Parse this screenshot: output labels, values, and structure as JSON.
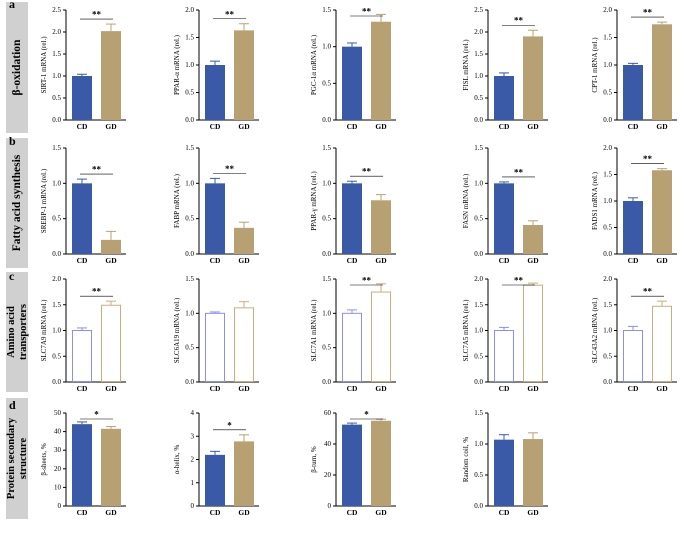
{
  "colors": {
    "cd": "#3a5aa8",
    "gd": "#b7a173",
    "gd_outline": "#c9ad7f",
    "cd_outline": "#8c8ff2",
    "axis": "#000000",
    "band": "#d0d0d0"
  },
  "panels": [
    {
      "letter": "a",
      "label": "β-oxidation"
    },
    {
      "letter": "b",
      "label": "Fatty acid synthesis"
    },
    {
      "letter": "c",
      "label": "Amino acid transporters"
    },
    {
      "letter": "d",
      "label": "Protein secondary structure"
    }
  ],
  "chart_data": [
    {
      "type": "bar",
      "row": 0,
      "col": 0,
      "title": "",
      "ylabel": "SIRT-1 mRNA (rel.)",
      "categories": [
        "CD",
        "GD"
      ],
      "values": [
        1.0,
        2.02
      ],
      "errors": [
        0.04,
        0.16
      ],
      "ylim": [
        0,
        2.5
      ],
      "yticks": [
        "0.0",
        "0.5",
        "1.0",
        "1.5",
        "2.0",
        "2.5"
      ],
      "significance": "**",
      "style": "filled"
    },
    {
      "type": "bar",
      "row": 0,
      "col": 1,
      "title": "",
      "ylabel": "PPAR-α mRNA (rel.)",
      "categories": [
        "CD",
        "GD"
      ],
      "values": [
        1.0,
        1.63
      ],
      "errors": [
        0.07,
        0.12
      ],
      "ylim": [
        0,
        2.0
      ],
      "yticks": [
        "0.0",
        "0.5",
        "1.0",
        "1.5",
        "2.0"
      ],
      "significance": "**",
      "style": "filled"
    },
    {
      "type": "bar",
      "row": 0,
      "col": 2,
      "title": "",
      "ylabel": "PGC-1α mRNA (rel.)",
      "categories": [
        "CD",
        "GD"
      ],
      "values": [
        1.0,
        1.34
      ],
      "errors": [
        0.05,
        0.1
      ],
      "ylim": [
        0,
        1.5
      ],
      "yticks": [
        "0.0",
        "0.5",
        "1.0",
        "1.5"
      ],
      "significance": "**",
      "style": "filled"
    },
    {
      "type": "bar",
      "row": 0,
      "col": 3,
      "title": "",
      "ylabel": "FISL mRNA (rel.)",
      "categories": [
        "CD",
        "GD"
      ],
      "values": [
        1.0,
        1.9
      ],
      "errors": [
        0.07,
        0.14
      ],
      "ylim": [
        0,
        2.5
      ],
      "yticks": [
        "0.0",
        "0.5",
        "1.0",
        "1.5",
        "2.0",
        "2.5"
      ],
      "significance": "**",
      "style": "filled"
    },
    {
      "type": "bar",
      "row": 0,
      "col": 4,
      "title": "",
      "ylabel": "CPT-1 mRNA (rel.)",
      "categories": [
        "CD",
        "GD"
      ],
      "values": [
        1.0,
        1.74
      ],
      "errors": [
        0.03,
        0.04
      ],
      "ylim": [
        0,
        2.0
      ],
      "yticks": [
        "0.0",
        "0.5",
        "1.0",
        "1.5",
        "2.0"
      ],
      "significance": "**",
      "style": "filled"
    },
    {
      "type": "bar",
      "row": 1,
      "col": 0,
      "title": "",
      "ylabel": "SREBP-1 mRNA (rel.)",
      "categories": [
        "CD",
        "GD"
      ],
      "values": [
        1.0,
        0.2
      ],
      "errors": [
        0.06,
        0.12
      ],
      "ylim": [
        0,
        1.5
      ],
      "yticks": [
        "0.0",
        "0.5",
        "1.0",
        "1.5"
      ],
      "significance": "**",
      "style": "filled"
    },
    {
      "type": "bar",
      "row": 1,
      "col": 1,
      "title": "",
      "ylabel": "FABP mRNA (rel.)",
      "categories": [
        "CD",
        "GD"
      ],
      "values": [
        1.0,
        0.37
      ],
      "errors": [
        0.07,
        0.08
      ],
      "ylim": [
        0,
        1.5
      ],
      "yticks": [
        "0.0",
        "0.5",
        "1.0",
        "1.5"
      ],
      "significance": "**",
      "style": "filled"
    },
    {
      "type": "bar",
      "row": 1,
      "col": 2,
      "title": "",
      "ylabel": "PPAR-γ mRNA (rel.)",
      "categories": [
        "CD",
        "GD"
      ],
      "values": [
        1.0,
        0.76
      ],
      "errors": [
        0.03,
        0.08
      ],
      "ylim": [
        0,
        1.5
      ],
      "yticks": [
        "0.0",
        "0.5",
        "1.0",
        "1.5"
      ],
      "significance": "**",
      "style": "filled"
    },
    {
      "type": "bar",
      "row": 1,
      "col": 3,
      "title": "",
      "ylabel": "FASN mRNA (rel.)",
      "categories": [
        "CD",
        "GD"
      ],
      "values": [
        1.0,
        0.41
      ],
      "errors": [
        0.02,
        0.06
      ],
      "ylim": [
        0,
        1.5
      ],
      "yticks": [
        "0.0",
        "0.5",
        "1.0",
        "1.5"
      ],
      "significance": "**",
      "style": "filled"
    },
    {
      "type": "bar",
      "row": 1,
      "col": 4,
      "title": "",
      "ylabel": "FADS1 mRNA (rel.)",
      "categories": [
        "CD",
        "GD"
      ],
      "values": [
        1.0,
        1.58
      ],
      "errors": [
        0.06,
        0.03
      ],
      "ylim": [
        0,
        2.0
      ],
      "yticks": [
        "0.0",
        "0.5",
        "1.0",
        "1.5",
        "2.0"
      ],
      "significance": "**",
      "style": "filled"
    },
    {
      "type": "bar",
      "row": 2,
      "col": 0,
      "title": "",
      "ylabel": "SLC7A9 mRNA (rel.)",
      "categories": [
        "CD",
        "GD"
      ],
      "values": [
        1.0,
        1.49
      ],
      "errors": [
        0.05,
        0.08
      ],
      "ylim": [
        0,
        2.0
      ],
      "yticks": [
        "0.0",
        "0.5",
        "1.0",
        "1.5",
        "2.0"
      ],
      "significance": "**",
      "style": "outline"
    },
    {
      "type": "bar",
      "row": 2,
      "col": 1,
      "title": "",
      "ylabel": "SLC6A19 mRNA (rel.)",
      "categories": [
        "CD",
        "GD"
      ],
      "values": [
        1.0,
        1.08
      ],
      "errors": [
        0.02,
        0.09
      ],
      "ylim": [
        0,
        1.5
      ],
      "yticks": [
        "0.0",
        "0.5",
        "1.0",
        "1.5"
      ],
      "significance": "",
      "style": "outline"
    },
    {
      "type": "bar",
      "row": 2,
      "col": 2,
      "title": "",
      "ylabel": "SLC7A1 mRNA (rel.)",
      "categories": [
        "CD",
        "GD"
      ],
      "values": [
        1.0,
        1.31
      ],
      "errors": [
        0.05,
        0.12
      ],
      "ylim": [
        0,
        1.5
      ],
      "yticks": [
        "0.0",
        "0.5",
        "1.0",
        "1.5"
      ],
      "significance": "**",
      "style": "outline"
    },
    {
      "type": "bar",
      "row": 2,
      "col": 3,
      "title": "",
      "ylabel": "SLC7A5 mRNA (rel.)",
      "categories": [
        "CD",
        "GD"
      ],
      "values": [
        1.0,
        1.88
      ],
      "errors": [
        0.06,
        0.04
      ],
      "ylim": [
        0,
        2.0
      ],
      "yticks": [
        "0.0",
        "0.5",
        "1.0",
        "1.5",
        "2.0"
      ],
      "significance": "**",
      "style": "outline"
    },
    {
      "type": "bar",
      "row": 2,
      "col": 4,
      "title": "",
      "ylabel": "SLC43A2 mRNA (rel.)",
      "categories": [
        "CD",
        "GD"
      ],
      "values": [
        1.0,
        1.47
      ],
      "errors": [
        0.08,
        0.1
      ],
      "ylim": [
        0,
        2.0
      ],
      "yticks": [
        "0.0",
        "0.5",
        "1.0",
        "1.5",
        "2.0"
      ],
      "significance": "**",
      "style": "outline"
    },
    {
      "type": "bar",
      "row": 3,
      "col": 0,
      "title": "",
      "ylabel": "β-sheets, %",
      "categories": [
        "CD",
        "GD"
      ],
      "values": [
        44.0,
        41.5
      ],
      "errors": [
        1.2,
        1.2
      ],
      "ylim": [
        0,
        50
      ],
      "yticks": [
        "0",
        "10",
        "20",
        "30",
        "40",
        "50"
      ],
      "significance": "*",
      "style": "filled"
    },
    {
      "type": "bar",
      "row": 3,
      "col": 1,
      "title": "",
      "ylabel": "α-helix, %",
      "categories": [
        "CD",
        "GD"
      ],
      "values": [
        2.2,
        2.78
      ],
      "errors": [
        0.15,
        0.28
      ],
      "ylim": [
        0,
        4
      ],
      "yticks": [
        "0",
        "1",
        "2",
        "3",
        "4"
      ],
      "significance": "*",
      "style": "filled"
    },
    {
      "type": "bar",
      "row": 3,
      "col": 2,
      "title": "",
      "ylabel": "β-turn, %",
      "categories": [
        "CD",
        "GD"
      ],
      "values": [
        52.5,
        55.0
      ],
      "errors": [
        1.0,
        1.0
      ],
      "ylim": [
        0,
        60
      ],
      "yticks": [
        "0",
        "20",
        "40",
        "60"
      ],
      "significance": "*",
      "style": "filled"
    },
    {
      "type": "bar",
      "row": 3,
      "col": 3,
      "title": "",
      "ylabel": "Random coil, %",
      "categories": [
        "CD",
        "GD"
      ],
      "values": [
        1.07,
        1.08
      ],
      "errors": [
        0.08,
        0.1
      ],
      "ylim": [
        0,
        1.5
      ],
      "yticks": [
        "0.0",
        "0.5",
        "1.0",
        "1.5"
      ],
      "significance": "",
      "style": "filled"
    }
  ]
}
